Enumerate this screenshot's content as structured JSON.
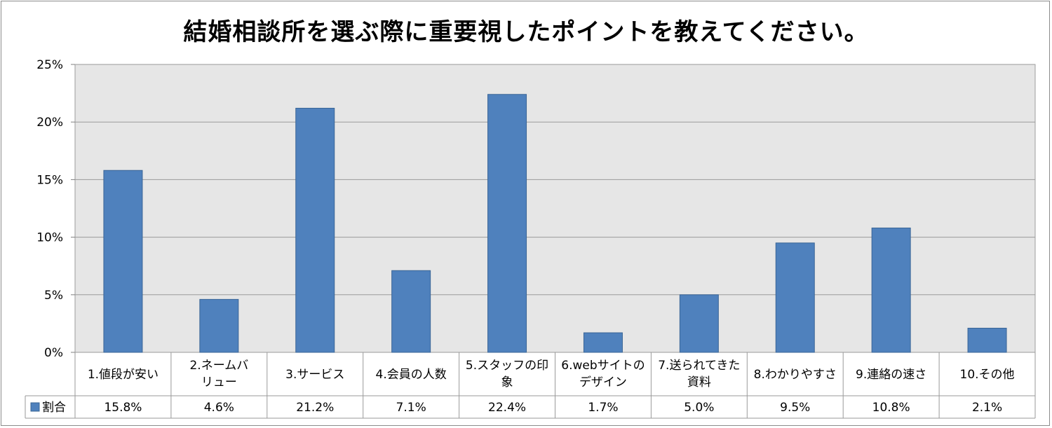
{
  "chart_data": {
    "type": "bar",
    "title": "結婚相談所を選ぶ際に重要視したポイントを教えてください。",
    "categories": [
      [
        "1.値段が安い"
      ],
      [
        "2.ネームバ",
        "リュー"
      ],
      [
        "3.サービス"
      ],
      [
        "4.会員の人数"
      ],
      [
        "5.スタッフの印",
        "象"
      ],
      [
        "6.webサイトの",
        "デザイン"
      ],
      [
        "7.送られてきた",
        "資料"
      ],
      [
        "8.わかりやすさ"
      ],
      [
        "9.連絡の速さ"
      ],
      [
        "10.その他"
      ]
    ],
    "series": [
      {
        "name": "割合",
        "values": [
          15.8,
          4.6,
          21.2,
          7.1,
          22.4,
          1.7,
          5.0,
          9.5,
          10.8,
          2.1
        ],
        "value_labels": [
          "15.8%",
          "4.6%",
          "21.2%",
          "7.1%",
          "22.4%",
          "1.7%",
          "5.0%",
          "9.5%",
          "10.8%",
          "2.1%"
        ],
        "color": "#4f81bd"
      }
    ],
    "ylim": [
      0,
      25
    ],
    "yticks": [
      "0%",
      "5%",
      "10%",
      "15%",
      "20%",
      "25%"
    ],
    "grid": true,
    "legend": "data-table",
    "plot_background": "#e6e6e6"
  }
}
